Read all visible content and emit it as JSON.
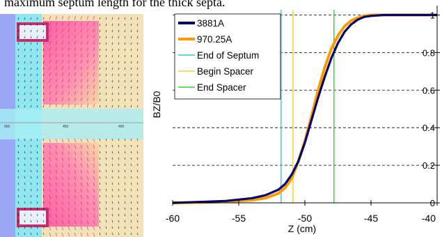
{
  "caption": "maximum septum length for the thick septa.",
  "field_map": {
    "axis_ticks": [
      "500",
      "450",
      "400"
    ],
    "colors": {
      "background": "#8ee6f0",
      "cavity": "#9aa7f5",
      "hot": "#ff4aa0",
      "warm": "#f6d6a0",
      "arrow": "#000000"
    }
  },
  "chart_data": {
    "type": "line",
    "title": "",
    "xlabel": "Z (cm)",
    "ylabel": "BZ/B0",
    "xlim": [
      -60,
      -40
    ],
    "ylim": [
      0,
      1.05
    ],
    "x_ticks": [
      "-60",
      "-55",
      "-50",
      "-45",
      "-40"
    ],
    "y_ticks": [
      "0",
      "0.2",
      "0.4",
      "0.6",
      "0.8",
      "1"
    ],
    "grid": "horizontal dashed",
    "legend_position": "top-left",
    "series": [
      {
        "name": "3881A",
        "color": "#00006e",
        "x": [
          -60,
          -58,
          -56,
          -54,
          -53,
          -52,
          -51.5,
          -51,
          -50.5,
          -50,
          -49.5,
          -49,
          -48.5,
          -48,
          -47.5,
          -47,
          -46.5,
          -46,
          -45.5,
          -45,
          -44,
          -42,
          -40
        ],
        "y": [
          0.0,
          0.005,
          0.01,
          0.025,
          0.04,
          0.07,
          0.1,
          0.15,
          0.22,
          0.32,
          0.44,
          0.56,
          0.67,
          0.77,
          0.85,
          0.91,
          0.95,
          0.975,
          0.99,
          0.995,
          1.0,
          1.0,
          1.0
        ]
      },
      {
        "name": "970.25A",
        "color": "#ff9900",
        "x": [
          -60,
          -58,
          -56,
          -54,
          -53,
          -52,
          -51.5,
          -51,
          -50.5,
          -50,
          -49.5,
          -49,
          -48.5,
          -48,
          -47.5,
          -47,
          -46.5,
          -46,
          -45.5,
          -45,
          -44,
          -42,
          -40
        ],
        "y": [
          0.0,
          0.002,
          0.006,
          0.015,
          0.025,
          0.05,
          0.08,
          0.13,
          0.22,
          0.33,
          0.46,
          0.6,
          0.72,
          0.82,
          0.89,
          0.94,
          0.97,
          0.985,
          0.995,
          1.0,
          1.0,
          1.0,
          1.0
        ]
      }
    ],
    "vertical_markers": [
      {
        "name": "End of Septum",
        "x": -51.8,
        "color": "#33cccc"
      },
      {
        "name": "Begin Spacer",
        "x": -50.9,
        "color": "#ffcc33"
      },
      {
        "name": "End Spacer",
        "x": -47.8,
        "color": "#33cc33"
      }
    ]
  }
}
